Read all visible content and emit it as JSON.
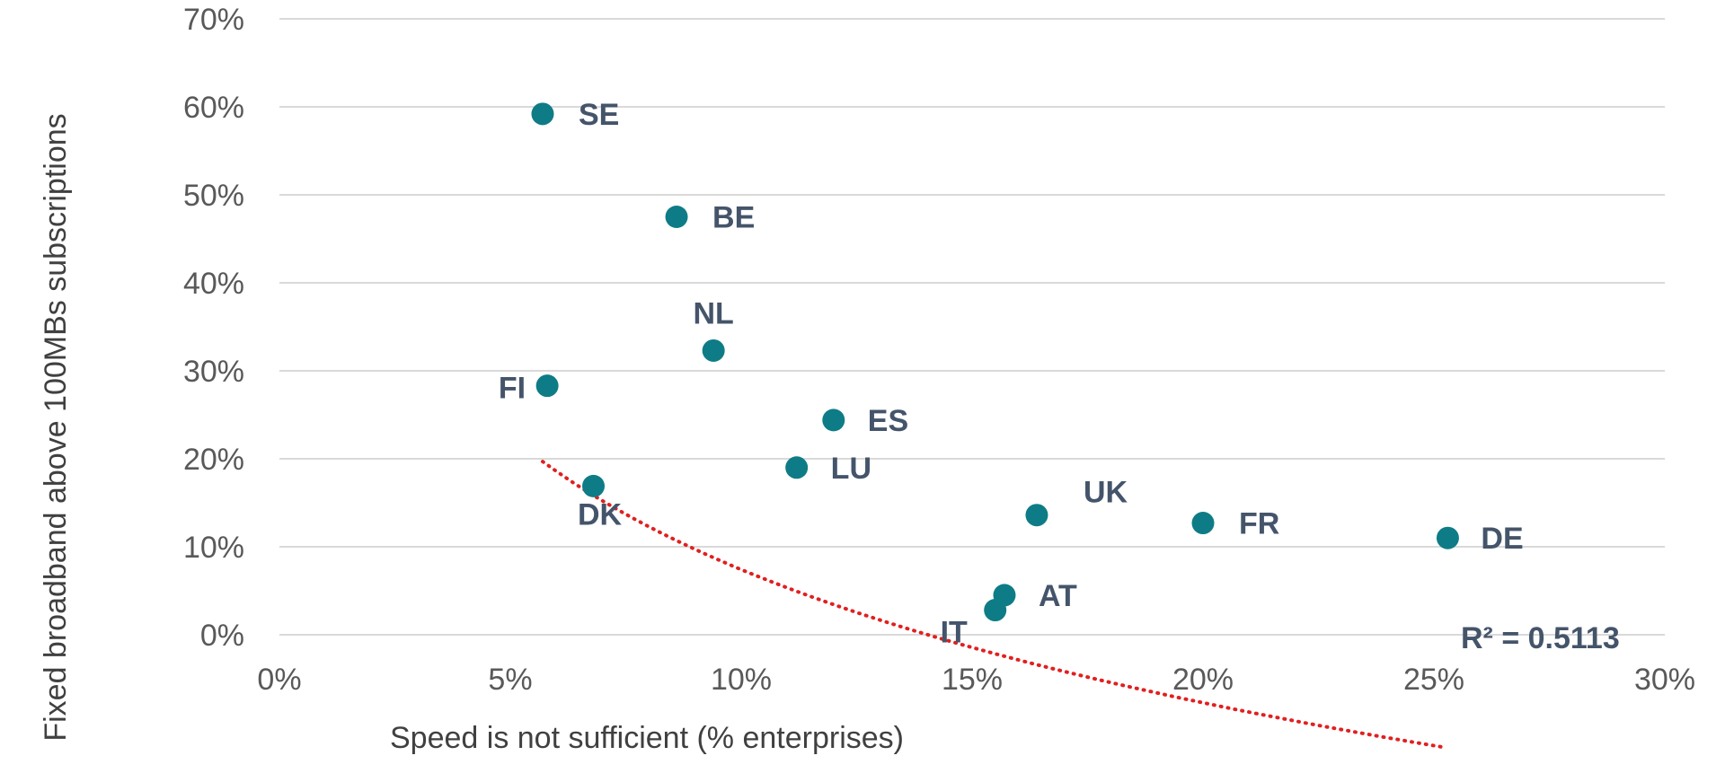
{
  "chart_data": {
    "type": "scatter",
    "xlabel": "Speed is not sufficient (% enterprises)",
    "ylabel": "Fixed broadband above 100MBs subscriptions",
    "xlim": [
      0,
      30
    ],
    "ylim": [
      0,
      70
    ],
    "x_ticks": [
      "0%",
      "5%",
      "10%",
      "15%",
      "20%",
      "25%",
      "30%"
    ],
    "y_ticks": [
      "0%",
      "10%",
      "20%",
      "30%",
      "40%",
      "50%",
      "60%",
      "70%"
    ],
    "grid": "horizontal",
    "marker_color": "#0e7c86",
    "trendline": {
      "type": "logarithmic",
      "color": "#e02020",
      "style": "dotted",
      "x_range": [
        5.7,
        25.2
      ],
      "r2_label": "R² = 0.5113"
    },
    "points": [
      {
        "label": "SE",
        "x": 5.7,
        "y": 59.2
      },
      {
        "label": "BE",
        "x": 8.6,
        "y": 47.5
      },
      {
        "label": "NL",
        "x": 9.4,
        "y": 32.3
      },
      {
        "label": "FI",
        "x": 5.8,
        "y": 28.3
      },
      {
        "label": "ES",
        "x": 12.0,
        "y": 24.4
      },
      {
        "label": "LU",
        "x": 11.2,
        "y": 19.0
      },
      {
        "label": "DK",
        "x": 6.8,
        "y": 16.9
      },
      {
        "label": "UK",
        "x": 16.4,
        "y": 13.6
      },
      {
        "label": "FR",
        "x": 20.0,
        "y": 12.7
      },
      {
        "label": "DE",
        "x": 25.3,
        "y": 11.0
      },
      {
        "label": "AT",
        "x": 15.7,
        "y": 4.5
      },
      {
        "label": "IT",
        "x": 15.5,
        "y": 2.8
      }
    ]
  }
}
